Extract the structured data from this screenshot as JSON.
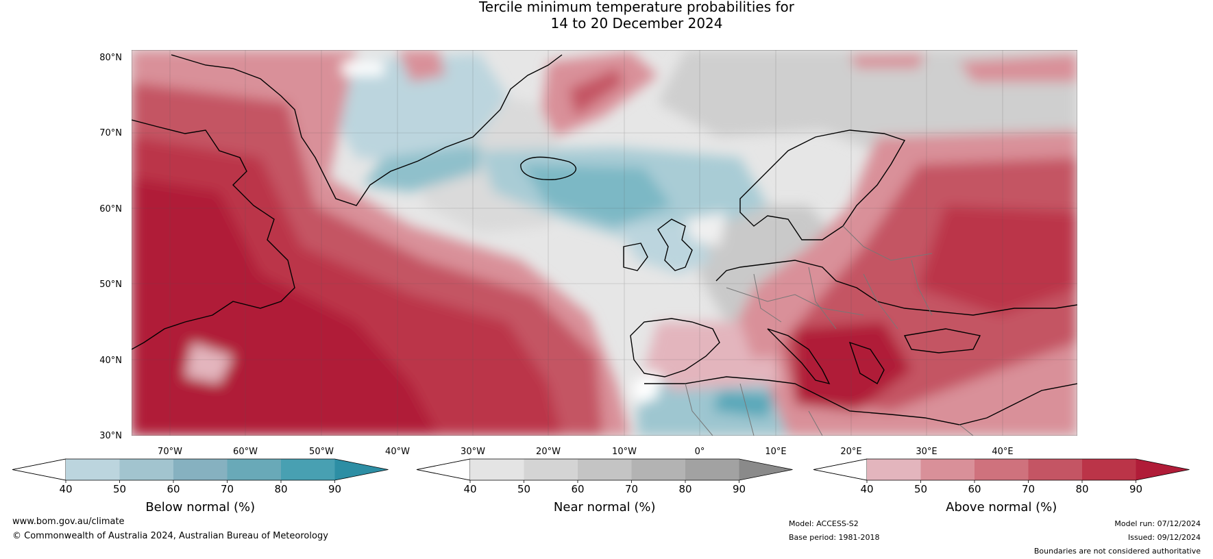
{
  "title": {
    "line1": "Tercile minimum temperature probabilities for",
    "line2": "14 to 20 December 2024"
  },
  "map": {
    "lat_labels": [
      "80°N",
      "70°N",
      "60°N",
      "50°N",
      "40°N",
      "30°N"
    ],
    "lon_labels": [
      "70°W",
      "60°W",
      "50°W",
      "40°W",
      "30°W",
      "20°W",
      "10°W",
      "0°",
      "10°E",
      "20°E",
      "30°E",
      "40°E"
    ]
  },
  "colorbars": [
    {
      "label": "Below normal (%)",
      "ticks": [
        "40",
        "50",
        "60",
        "70",
        "80",
        "90"
      ],
      "colors": [
        "#bcd5de",
        "#a2c4cf",
        "#86b1c0",
        "#69a9b8",
        "#48a0b2",
        "#2d8ea4"
      ],
      "open_color": "#ffffff"
    },
    {
      "label": "Near normal (%)",
      "ticks": [
        "40",
        "50",
        "60",
        "70",
        "80",
        "90"
      ],
      "colors": [
        "#e4e4e4",
        "#d4d4d4",
        "#c4c4c4",
        "#b3b3b3",
        "#a2a2a2",
        "#8a8a8a"
      ],
      "open_color": "#ffffff"
    },
    {
      "label": "Above normal (%)",
      "ticks": [
        "40",
        "50",
        "60",
        "70",
        "80",
        "90"
      ],
      "colors": [
        "#e3b5bd",
        "#d99099",
        "#cf727d",
        "#c45564",
        "#bb3448",
        "#b01c38"
      ],
      "open_color": "#ffffff"
    }
  ],
  "footer": {
    "website": "www.bom.gov.au/climate",
    "copyright": "© Commonwealth of Australia 2024, Australian Bureau of Meteorology",
    "model": "Model: ACCESS-S2",
    "base_period": "Base period: 1981-2018",
    "model_run": "Model run: 07/12/2024",
    "issued": "Issued: 09/12/2024",
    "disclaimer": "Boundaries are not considered authoritative"
  }
}
